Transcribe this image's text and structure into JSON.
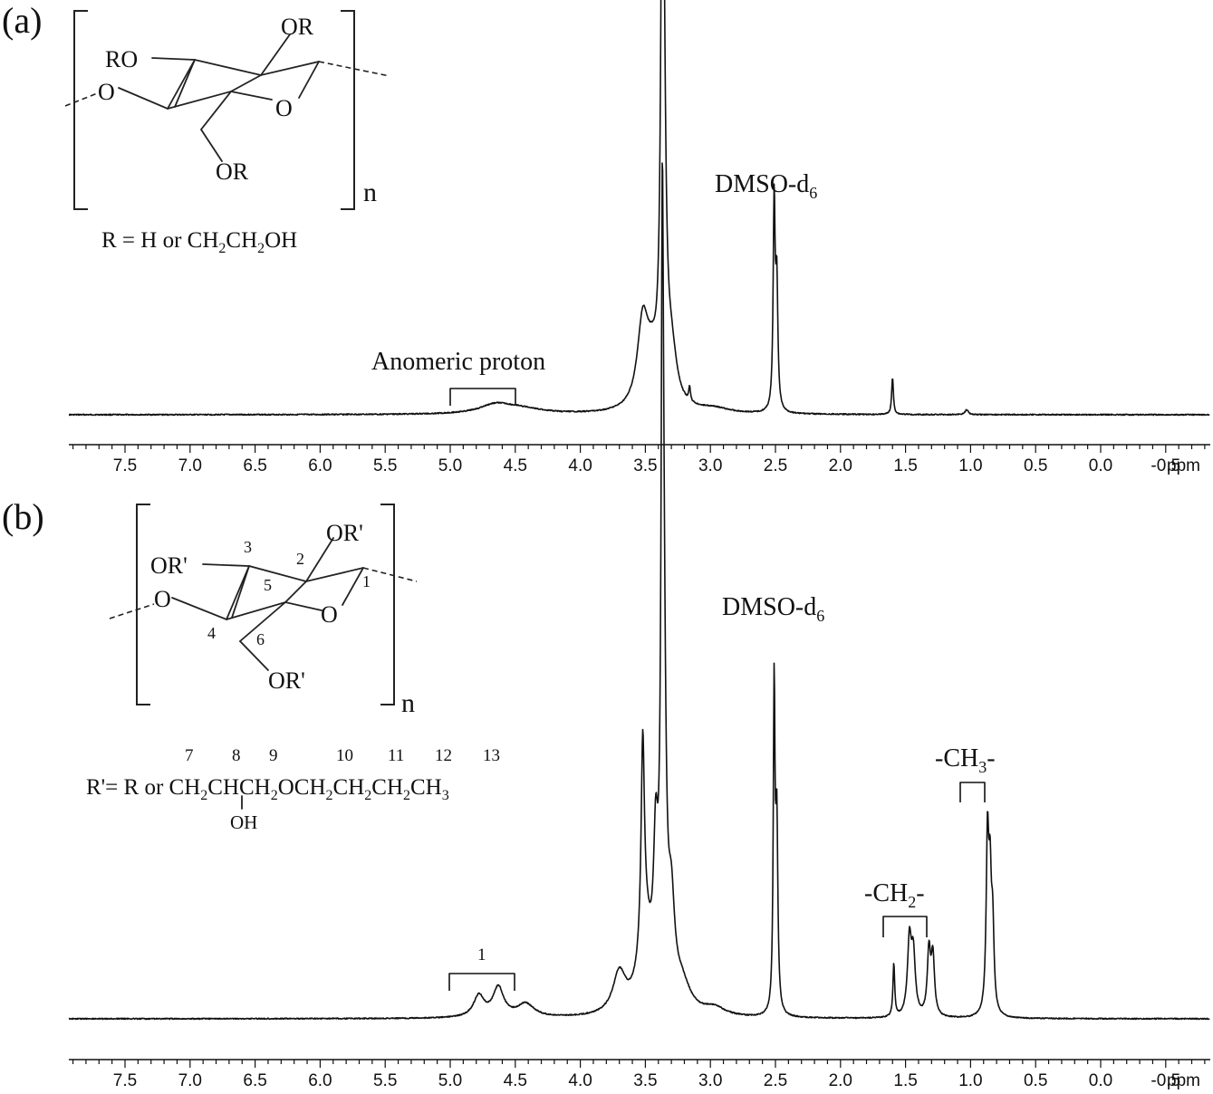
{
  "chart_data": [
    {
      "type": "line",
      "panel_label": "(a)",
      "x_axis": {
        "unit": "ppm",
        "reversed": true,
        "range": [
          -0.9,
          8.0
        ],
        "ticks": [
          "7.5",
          "7.0",
          "6.5",
          "6.0",
          "5.5",
          "5.0",
          "4.5",
          "4.0",
          "3.5",
          "3.0",
          "2.5",
          "2.0",
          "1.5",
          "1.0",
          "0.5",
          "0.0",
          "-0.5"
        ]
      },
      "peaks": [
        {
          "ppm": 4.65,
          "height": 0.022,
          "width": 0.15
        },
        {
          "ppm": 4.45,
          "height": 0.012,
          "width": 0.2
        },
        {
          "ppm": 3.52,
          "height": 0.2,
          "width": 0.05
        },
        {
          "ppm": 3.45,
          "height": 0.09,
          "width": 0.06
        },
        {
          "ppm": 3.37,
          "height": 1.0,
          "width": 0.012
        },
        {
          "ppm": 3.36,
          "height": 0.7,
          "width": 0.02
        },
        {
          "ppm": 3.3,
          "height": 0.12,
          "width": 0.05
        },
        {
          "ppm": 3.16,
          "height": 0.035,
          "width": 0.008
        },
        {
          "ppm": 2.98,
          "height": 0.012,
          "width": 0.15
        },
        {
          "ppm": 2.51,
          "height": 0.5,
          "width": 0.009
        },
        {
          "ppm": 2.49,
          "height": 0.3,
          "width": 0.01
        },
        {
          "ppm": 1.6,
          "height": 0.09,
          "width": 0.008
        },
        {
          "ppm": 1.03,
          "height": 0.012,
          "width": 0.015
        }
      ],
      "annotations": [
        {
          "text": "Anomeric proton",
          "from_ppm": 5.0,
          "to_ppm": 4.5
        },
        {
          "text": "DMSO-d",
          "subscript": "6",
          "ppm": 2.5
        }
      ],
      "structure": {
        "substituents": [
          "OR",
          "RO",
          "O",
          "O",
          "OR"
        ],
        "repeat": "n",
        "caption": {
          "parts": [
            "R = H or CH",
            "2",
            "CH",
            "2",
            "OH"
          ]
        }
      }
    },
    {
      "type": "line",
      "panel_label": "(b)",
      "x_axis": {
        "unit": "ppm",
        "reversed": true,
        "range": [
          -0.9,
          8.0
        ],
        "ticks": [
          "7.5",
          "7.0",
          "6.5",
          "6.0",
          "5.5",
          "5.0",
          "4.5",
          "4.0",
          "3.5",
          "3.0",
          "2.5",
          "2.0",
          "1.5",
          "1.0",
          "0.5",
          "0.0",
          "-0.5"
        ]
      },
      "peaks": [
        {
          "ppm": 4.78,
          "height": 0.04,
          "width": 0.05
        },
        {
          "ppm": 4.63,
          "height": 0.055,
          "width": 0.05
        },
        {
          "ppm": 4.42,
          "height": 0.025,
          "width": 0.08
        },
        {
          "ppm": 3.7,
          "height": 0.075,
          "width": 0.06
        },
        {
          "ppm": 3.52,
          "height": 0.38,
          "width": 0.015
        },
        {
          "ppm": 3.5,
          "height": 0.14,
          "width": 0.06
        },
        {
          "ppm": 3.42,
          "height": 0.24,
          "width": 0.02
        },
        {
          "ppm": 3.37,
          "height": 1.0,
          "width": 0.01
        },
        {
          "ppm": 3.36,
          "height": 0.65,
          "width": 0.02
        },
        {
          "ppm": 3.3,
          "height": 0.16,
          "width": 0.03
        },
        {
          "ppm": 3.22,
          "height": 0.05,
          "width": 0.08
        },
        {
          "ppm": 2.97,
          "height": 0.015,
          "width": 0.1
        },
        {
          "ppm": 2.51,
          "height": 0.6,
          "width": 0.008
        },
        {
          "ppm": 2.49,
          "height": 0.35,
          "width": 0.01
        },
        {
          "ppm": 1.59,
          "height": 0.1,
          "width": 0.008
        },
        {
          "ppm": 1.47,
          "height": 0.14,
          "width": 0.018
        },
        {
          "ppm": 1.44,
          "height": 0.11,
          "width": 0.018
        },
        {
          "ppm": 1.32,
          "height": 0.12,
          "width": 0.015
        },
        {
          "ppm": 1.29,
          "height": 0.11,
          "width": 0.015
        },
        {
          "ppm": 0.87,
          "height": 0.32,
          "width": 0.012
        },
        {
          "ppm": 0.85,
          "height": 0.22,
          "width": 0.012
        },
        {
          "ppm": 0.83,
          "height": 0.15,
          "width": 0.012
        }
      ],
      "annotations": [
        {
          "text": "1",
          "from_ppm": 5.0,
          "to_ppm": 4.5
        },
        {
          "text": "DMSO-d",
          "subscript": "6",
          "ppm": 2.5
        },
        {
          "text": "-CH",
          "subscript": "2",
          "suffix": "-",
          "from_ppm": 1.6,
          "to_ppm": 1.25
        },
        {
          "text": "-CH",
          "subscript": "3",
          "suffix": "-",
          "from_ppm": 0.95,
          "to_ppm": 0.75
        }
      ],
      "structure": {
        "substituents": [
          "OR'",
          "OR'",
          "O",
          "O",
          "OR'"
        ],
        "atom_numbers": [
          "1",
          "2",
          "3",
          "4",
          "5",
          "6"
        ],
        "repeat": "n",
        "chain_numbers": [
          "7",
          "8",
          "9",
          "10",
          "11",
          "12",
          "13"
        ],
        "caption": {
          "parts": [
            "R'= R or CH",
            "2",
            "CHCH",
            "2",
            "OCH",
            "2",
            "CH",
            "2",
            "CH",
            "2",
            "CH",
            "3"
          ]
        },
        "branch": "OH"
      }
    }
  ]
}
